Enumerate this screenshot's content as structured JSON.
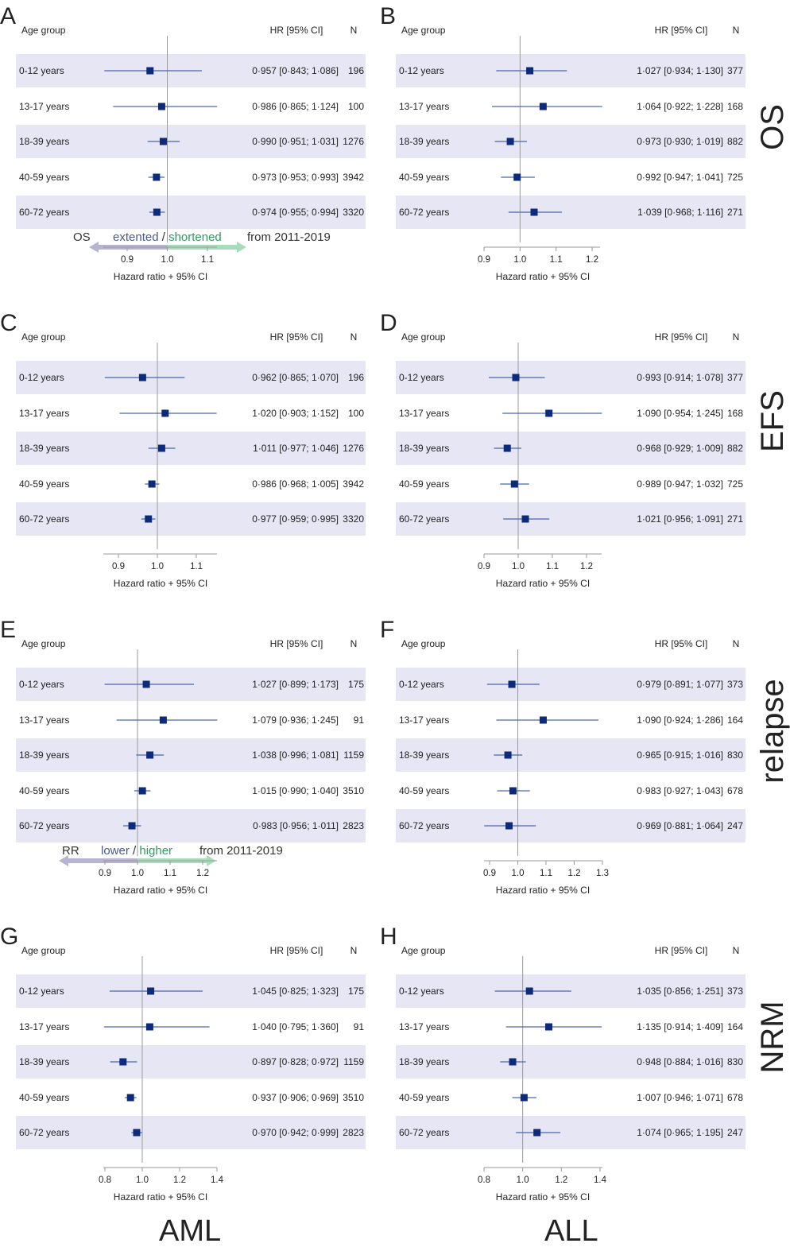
{
  "colors": {
    "band": "#e6e6f5",
    "marker": "#0d2b7a",
    "ci_line": "#4a67ad",
    "axis": "#9a9a9a",
    "ref_line": "#9a9a9a",
    "arrow_left": "#b7b3d3",
    "arrow_right": "#a9dcbc",
    "green_text": "#2e9a5e",
    "blue_text": "#4a5a8c"
  },
  "headers": {
    "age_group": "Age group",
    "hr_ci": "HR [95% CI]",
    "n": "N"
  },
  "x_axis_title": "Hazard ratio + 95% CI",
  "row_labels": [
    "0-12 years",
    "13-17 years",
    "18-39 years",
    "40-59 years",
    "60-72 years"
  ],
  "row_labels_text": {
    "r0": "0-12 years",
    "r1": "13-17 years",
    "r2": "18-39 years",
    "r3": "40-59 years",
    "r4": "60-72 years"
  },
  "outcome_labels": {
    "os": "OS",
    "efs": "EFS",
    "relapse": "relapse",
    "nrm": "NRM"
  },
  "column_labels": {
    "aml": "AML",
    "all": "ALL"
  },
  "annotations": {
    "os": {
      "prefix": "OS",
      "left_word": "extented",
      "slash": "/",
      "right_word": "shortened",
      "suffix": "from 2011-2019"
    },
    "relapse": {
      "prefix": "RR",
      "left_word": "lower",
      "slash": "/",
      "right_word": "higher",
      "suffix": "from 2011-2019"
    }
  },
  "chart_data": [
    {
      "panel": "A",
      "type": "forest",
      "outcome": "OS",
      "group": "AML",
      "xlabel": "Hazard ratio + 95% CI",
      "xlim": [
        0.85,
        1.15
      ],
      "xticks": [
        0.9,
        1.0,
        1.1
      ],
      "xtick_labels": [
        "0.9",
        "1.0",
        "1.1"
      ],
      "categories": [
        "0-12 years",
        "13-17 years",
        "18-39 years",
        "40-59 years",
        "60-72 years"
      ],
      "hr": [
        0.957,
        0.986,
        0.99,
        0.973,
        0.974
      ],
      "lo": [
        0.843,
        0.865,
        0.951,
        0.953,
        0.955
      ],
      "hi": [
        1.086,
        1.124,
        1.031,
        0.993,
        0.994
      ],
      "n": [
        196,
        100,
        1276,
        3942,
        3320
      ],
      "ci_text": [
        "0·957 [0·843; 1·086]",
        "0·986 [0·865; 1·124]",
        "0·990 [0·951; 1·031]",
        "0·973 [0·953; 0·993]",
        "0·974 [0·955; 0·994]"
      ],
      "n_text": [
        "196",
        "100",
        "1276",
        "3942",
        "3320"
      ],
      "annotation": "os"
    },
    {
      "panel": "B",
      "type": "forest",
      "outcome": "OS",
      "group": "ALL",
      "xlabel": "Hazard ratio + 95% CI",
      "xlim": [
        0.9,
        1.25
      ],
      "xticks": [
        0.9,
        1.0,
        1.1,
        1.2
      ],
      "xtick_labels": [
        "0.9",
        "1.0",
        "1.1",
        "1.2"
      ],
      "categories": [
        "0-12 years",
        "13-17 years",
        "18-39 years",
        "40-59 years",
        "60-72 years"
      ],
      "hr": [
        1.027,
        1.064,
        0.973,
        0.992,
        1.039
      ],
      "lo": [
        0.934,
        0.922,
        0.93,
        0.947,
        0.968
      ],
      "hi": [
        1.13,
        1.228,
        1.019,
        1.041,
        1.116
      ],
      "n": [
        377,
        168,
        882,
        725,
        271
      ],
      "ci_text": [
        "1·027 [0·934; 1·130]",
        "1·064 [0·922; 1·228]",
        "0·973 [0·930; 1·019]",
        "0·992 [0·947; 1·041]",
        "1·039 [0·968; 1·116]"
      ],
      "n_text": [
        "377",
        "168",
        "882",
        "725",
        "271"
      ]
    },
    {
      "panel": "C",
      "type": "forest",
      "outcome": "EFS",
      "group": "AML",
      "xlabel": "Hazard ratio + 95% CI",
      "xlim": [
        0.85,
        1.15
      ],
      "xticks": [
        0.9,
        1.0,
        1.1
      ],
      "xtick_labels": [
        "0.9",
        "1.0",
        "1.1"
      ],
      "categories": [
        "0-12 years",
        "13-17 years",
        "18-39 years",
        "40-59 years",
        "60-72 years"
      ],
      "hr": [
        0.962,
        1.02,
        1.011,
        0.986,
        0.977
      ],
      "lo": [
        0.865,
        0.903,
        0.977,
        0.968,
        0.959
      ],
      "hi": [
        1.07,
        1.152,
        1.046,
        1.005,
        0.995
      ],
      "n": [
        196,
        100,
        1276,
        3942,
        3320
      ],
      "ci_text": [
        "0·962 [0·865; 1·070]",
        "1·020 [0·903; 1·152]",
        "1·011 [0·977; 1·046]",
        "0·986 [0·968; 1·005]",
        "0·977 [0·959; 0·995]"
      ],
      "n_text": [
        "196",
        "100",
        "1276",
        "3942",
        "3320"
      ]
    },
    {
      "panel": "D",
      "type": "forest",
      "outcome": "EFS",
      "group": "ALL",
      "xlabel": "Hazard ratio + 95% CI",
      "xlim": [
        0.9,
        1.25
      ],
      "xticks": [
        0.9,
        1.0,
        1.1,
        1.2
      ],
      "xtick_labels": [
        "0.9",
        "1.0",
        "1.1",
        "1.2"
      ],
      "categories": [
        "0-12 years",
        "13-17 years",
        "18-39 years",
        "40-59 years",
        "60-72 years"
      ],
      "hr": [
        0.993,
        1.09,
        0.968,
        0.989,
        1.021
      ],
      "lo": [
        0.914,
        0.954,
        0.929,
        0.947,
        0.956
      ],
      "hi": [
        1.078,
        1.245,
        1.009,
        1.032,
        1.091
      ],
      "n": [
        377,
        168,
        882,
        725,
        271
      ],
      "ci_text": [
        "0·993 [0·914; 1·078]",
        "1·090 [0·954; 1·245]",
        "0·968 [0·929; 1·009]",
        "0·989 [0·947; 1·032]",
        "1·021 [0·956; 1·091]"
      ],
      "n_text": [
        "377",
        "168",
        "882",
        "725",
        "271"
      ]
    },
    {
      "panel": "E",
      "type": "forest",
      "outcome": "relapse",
      "group": "AML",
      "xlabel": "Hazard ratio + 95% CI",
      "xlim": [
        0.85,
        1.25
      ],
      "xticks": [
        0.9,
        1.0,
        1.1,
        1.2
      ],
      "xtick_labels": [
        "0.9",
        "1.0",
        "1.1",
        "1.2"
      ],
      "categories": [
        "0-12 years",
        "13-17 years",
        "18-39 years",
        "40-59 years",
        "60-72 years"
      ],
      "hr": [
        1.027,
        1.079,
        1.038,
        1.015,
        0.983
      ],
      "lo": [
        0.899,
        0.936,
        0.996,
        0.99,
        0.956
      ],
      "hi": [
        1.173,
        1.245,
        1.081,
        1.04,
        1.011
      ],
      "n": [
        175,
        91,
        1159,
        3510,
        2823
      ],
      "ci_text": [
        "1·027 [0·899; 1·173]",
        "1·079 [0·936; 1·245]",
        "1·038 [0·996; 1·081]",
        "1·015 [0·990; 1·040]",
        "0·983 [0·956; 1·011]"
      ],
      "n_text": [
        "175",
        "91",
        "1159",
        "3510",
        "2823"
      ],
      "annotation": "relapse"
    },
    {
      "panel": "F",
      "type": "forest",
      "outcome": "relapse",
      "group": "ALL",
      "xlabel": "Hazard ratio + 95% CI",
      "xlim": [
        0.88,
        1.3
      ],
      "xticks": [
        0.9,
        1.0,
        1.1,
        1.2,
        1.3
      ],
      "xtick_labels": [
        "0.9",
        "1.0",
        "1.1",
        "1.2",
        "1.3"
      ],
      "categories": [
        "0-12 years",
        "13-17 years",
        "18-39 years",
        "40-59 years",
        "60-72 years"
      ],
      "hr": [
        0.979,
        1.09,
        0.965,
        0.983,
        0.969
      ],
      "lo": [
        0.891,
        0.924,
        0.915,
        0.927,
        0.881
      ],
      "hi": [
        1.077,
        1.286,
        1.016,
        1.043,
        1.064
      ],
      "n": [
        373,
        164,
        830,
        678,
        247
      ],
      "ci_text": [
        "0·979 [0·891; 1·077]",
        "1·090 [0·924; 1·286]",
        "0·965 [0·915; 1·016]",
        "0·983 [0·927; 1·043]",
        "0·969 [0·881; 1·064]"
      ],
      "n_text": [
        "373",
        "164",
        "830",
        "678",
        "247"
      ]
    },
    {
      "panel": "G",
      "type": "forest",
      "outcome": "NRM",
      "group": "AML",
      "xlabel": "Hazard ratio + 95% CI",
      "xlim": [
        0.8,
        1.4
      ],
      "xticks": [
        0.8,
        1.0,
        1.2,
        1.4
      ],
      "xtick_labels": [
        "0.8",
        "1.0",
        "1.2",
        "1.4"
      ],
      "categories": [
        "0-12 years",
        "13-17 years",
        "18-39 years",
        "40-59 years",
        "60-72 years"
      ],
      "hr": [
        1.045,
        1.04,
        0.897,
        0.937,
        0.97
      ],
      "lo": [
        0.825,
        0.795,
        0.828,
        0.906,
        0.942
      ],
      "hi": [
        1.323,
        1.36,
        0.972,
        0.969,
        0.999
      ],
      "n": [
        175,
        91,
        1159,
        3510,
        2823
      ],
      "ci_text": [
        "1·045 [0·825; 1·323]",
        "1·040 [0·795; 1·360]",
        "0·897 [0·828; 0·972]",
        "0·937 [0·906; 0·969]",
        "0·970 [0·942; 0·999]"
      ],
      "n_text": [
        "175",
        "91",
        "1159",
        "3510",
        "2823"
      ]
    },
    {
      "panel": "H",
      "type": "forest",
      "outcome": "NRM",
      "group": "ALL",
      "xlabel": "Hazard ratio + 95% CI",
      "xlim": [
        0.8,
        1.4
      ],
      "xticks": [
        0.8,
        1.0,
        1.2,
        1.4
      ],
      "xtick_labels": [
        "0.8",
        "1.0",
        "1.2",
        "1.4"
      ],
      "categories": [
        "0-12 years",
        "13-17 years",
        "18-39 years",
        "40-59 years",
        "60-72 years"
      ],
      "hr": [
        1.035,
        1.135,
        0.948,
        1.007,
        1.074
      ],
      "lo": [
        0.856,
        0.914,
        0.884,
        0.946,
        0.965
      ],
      "hi": [
        1.251,
        1.409,
        1.016,
        1.071,
        1.195
      ],
      "n": [
        373,
        164,
        830,
        678,
        247
      ],
      "ci_text": [
        "1·035 [0·856; 1·251]",
        "1·135 [0·914; 1·409]",
        "0·948 [0·884; 1·016]",
        "1·007 [0·946; 1·071]",
        "1·074 [0·965; 1·195]"
      ],
      "n_text": [
        "373",
        "164",
        "830",
        "678",
        "247"
      ]
    }
  ]
}
